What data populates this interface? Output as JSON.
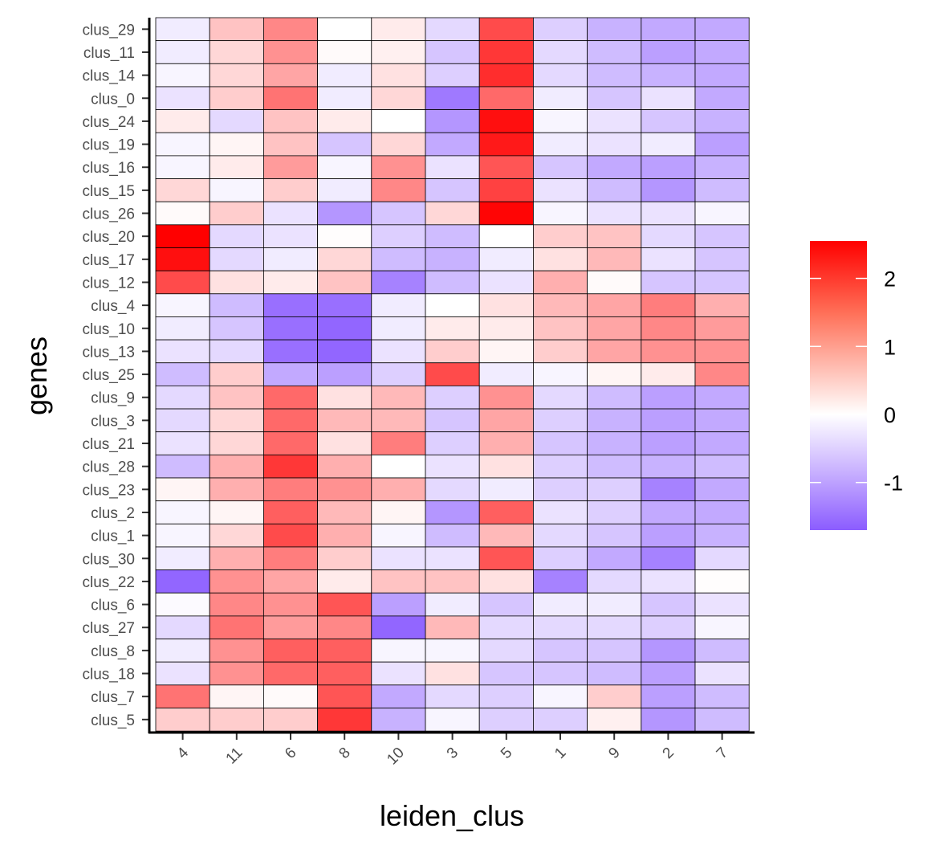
{
  "chart_data": {
    "type": "heatmap",
    "xlabel": "leiden_clus",
    "ylabel": "genes",
    "x": [
      "4",
      "11",
      "6",
      "8",
      "10",
      "3",
      "5",
      "1",
      "9",
      "2",
      "7"
    ],
    "y": [
      "clus_29",
      "clus_11",
      "clus_14",
      "clus_0",
      "clus_24",
      "clus_19",
      "clus_16",
      "clus_15",
      "clus_26",
      "clus_20",
      "clus_17",
      "clus_12",
      "clus_4",
      "clus_10",
      "clus_13",
      "clus_25",
      "clus_9",
      "clus_3",
      "clus_21",
      "clus_28",
      "clus_23",
      "clus_2",
      "clus_1",
      "clus_30",
      "clus_22",
      "clus_6",
      "clus_27",
      "clus_8",
      "clus_18",
      "clus_7",
      "clus_5"
    ],
    "values": [
      [
        -0.2,
        0.6,
        1.2,
        0.0,
        0.2,
        -0.4,
        1.8,
        -0.5,
        -0.8,
        -0.9,
        -0.9
      ],
      [
        -0.2,
        0.4,
        1.1,
        0.05,
        0.15,
        -0.6,
        2.0,
        -0.4,
        -0.7,
        -1.0,
        -0.9
      ],
      [
        -0.1,
        0.4,
        0.9,
        -0.2,
        0.3,
        -0.5,
        2.1,
        -0.4,
        -0.7,
        -0.8,
        -0.9
      ],
      [
        -0.3,
        0.5,
        1.4,
        -0.2,
        0.4,
        -1.4,
        1.5,
        -0.2,
        -0.6,
        -0.3,
        -0.9
      ],
      [
        0.2,
        -0.4,
        0.6,
        0.2,
        0.0,
        -1.1,
        2.4,
        -0.1,
        -0.3,
        -0.6,
        -0.8
      ],
      [
        -0.1,
        0.1,
        0.6,
        -0.6,
        0.4,
        -0.9,
        2.3,
        -0.2,
        -0.3,
        -0.2,
        -1.0
      ],
      [
        -0.1,
        0.2,
        1.0,
        -0.1,
        1.1,
        -0.3,
        1.7,
        -0.6,
        -0.9,
        -1.0,
        -0.8
      ],
      [
        0.4,
        -0.1,
        0.5,
        -0.2,
        1.2,
        -0.6,
        1.9,
        -0.3,
        -0.7,
        -1.1,
        -0.7
      ],
      [
        0.05,
        0.5,
        -0.3,
        -1.1,
        -0.6,
        0.4,
        2.5,
        -0.1,
        -0.3,
        -0.3,
        -0.1
      ],
      [
        2.6,
        -0.4,
        -0.3,
        0.02,
        -0.5,
        -0.7,
        0.0,
        0.5,
        0.6,
        -0.4,
        -0.6
      ],
      [
        2.4,
        -0.4,
        -0.2,
        0.4,
        -0.7,
        -0.8,
        -0.2,
        0.3,
        0.7,
        -0.3,
        -0.6
      ],
      [
        1.8,
        0.3,
        0.2,
        0.6,
        -1.3,
        -0.7,
        -0.3,
        0.8,
        0.05,
        -0.6,
        -0.6
      ],
      [
        -0.1,
        -0.7,
        -1.5,
        -1.5,
        -0.2,
        0.0,
        0.3,
        0.7,
        0.9,
        1.3,
        0.8
      ],
      [
        -0.2,
        -0.6,
        -1.5,
        -1.6,
        -0.2,
        0.2,
        0.2,
        0.6,
        0.9,
        1.2,
        1.0
      ],
      [
        -0.3,
        -0.4,
        -1.5,
        -1.6,
        -0.3,
        0.5,
        0.1,
        0.5,
        0.9,
        1.1,
        1.1
      ],
      [
        -0.7,
        0.5,
        -0.9,
        -1.0,
        -0.5,
        1.8,
        -0.2,
        -0.1,
        0.1,
        0.2,
        1.2
      ],
      [
        -0.4,
        0.6,
        1.5,
        0.3,
        0.7,
        -0.5,
        1.1,
        -0.4,
        -0.7,
        -1.0,
        -0.9
      ],
      [
        -0.4,
        0.4,
        1.5,
        0.7,
        0.7,
        -0.6,
        0.9,
        -0.5,
        -0.8,
        -1.0,
        -0.9
      ],
      [
        -0.3,
        0.4,
        1.5,
        0.3,
        1.3,
        -0.5,
        0.8,
        -0.6,
        -0.8,
        -1.0,
        -0.9
      ],
      [
        -0.7,
        0.8,
        2.0,
        0.8,
        0.0,
        -0.3,
        0.3,
        -0.5,
        -0.7,
        -0.8,
        -0.7
      ],
      [
        0.1,
        0.8,
        1.3,
        1.1,
        0.8,
        -0.4,
        -0.2,
        -0.5,
        -0.5,
        -1.3,
        -0.9
      ],
      [
        -0.1,
        0.1,
        1.6,
        0.7,
        0.1,
        -1.1,
        1.6,
        -0.3,
        -0.5,
        -0.9,
        -0.9
      ],
      [
        -0.1,
        0.4,
        1.8,
        0.8,
        -0.1,
        -0.7,
        0.7,
        -0.4,
        -0.6,
        -1.0,
        -0.8
      ],
      [
        -0.2,
        0.8,
        1.3,
        0.5,
        -0.3,
        -0.3,
        1.7,
        -0.5,
        -0.9,
        -1.3,
        -0.4
      ],
      [
        -1.6,
        1.1,
        0.9,
        0.2,
        0.6,
        0.6,
        0.3,
        -1.3,
        -0.4,
        -0.3,
        0.02
      ],
      [
        -0.05,
        1.2,
        1.1,
        1.7,
        -1.0,
        -0.2,
        -0.6,
        -0.2,
        -0.2,
        -0.6,
        -0.3
      ],
      [
        -0.4,
        1.4,
        1.0,
        1.2,
        -1.6,
        0.7,
        -0.4,
        -0.4,
        -0.4,
        -0.5,
        -0.1
      ],
      [
        -0.2,
        1.1,
        1.6,
        1.6,
        -0.1,
        -0.1,
        -0.4,
        -0.6,
        -0.6,
        -1.1,
        -0.7
      ],
      [
        -0.3,
        1.1,
        1.5,
        1.6,
        -0.3,
        0.3,
        -0.6,
        -0.6,
        -0.7,
        -1.0,
        -0.3
      ],
      [
        1.4,
        0.1,
        0.05,
        1.7,
        -0.9,
        -0.4,
        -0.5,
        -0.1,
        0.5,
        -1.0,
        -0.7
      ],
      [
        0.5,
        0.5,
        0.5,
        2.0,
        -0.8,
        -0.1,
        -0.5,
        -0.5,
        0.15,
        -1.1,
        -0.7
      ]
    ],
    "color_scale": {
      "low": "#8B5CFF",
      "mid": "#FFFFFF",
      "high": "#FF0000",
      "min": -1.7,
      "max": 2.55
    },
    "legend": {
      "ticks": [
        2,
        1,
        0,
        -1
      ],
      "labels": [
        "2",
        "1",
        "0",
        "-1"
      ],
      "position": "right"
    },
    "grid": false
  }
}
